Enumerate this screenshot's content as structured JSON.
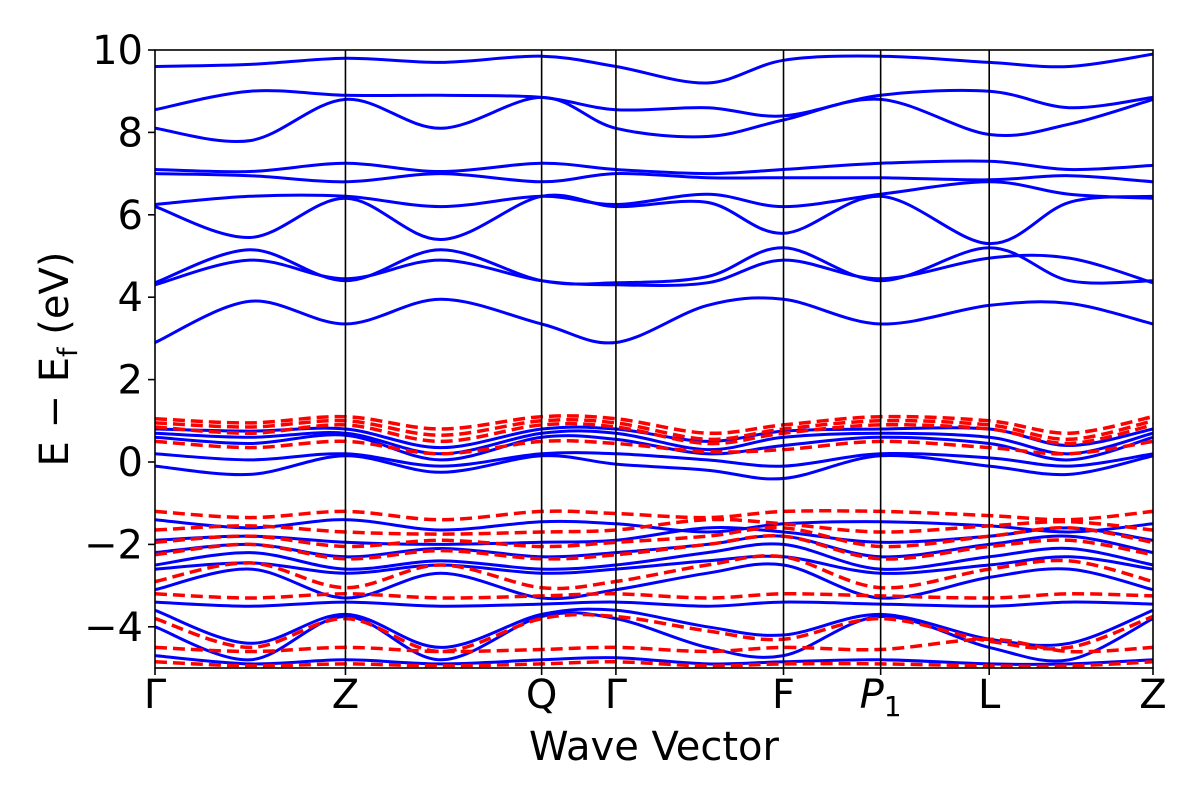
{
  "chart_data": {
    "type": "line",
    "xlabel": "Wave Vector",
    "ylabel_main": "E − E",
    "ylabel_sub": "f",
    "ylabel_unit": " (eV)",
    "ylim": [
      -5,
      10
    ],
    "yticks": [
      -4,
      -2,
      0,
      2,
      4,
      6,
      8,
      10
    ],
    "ytick_labels": [
      "−4",
      "−2",
      "0",
      "2",
      "4",
      "6",
      "8",
      "10"
    ],
    "kpoints": [
      {
        "label": "Γ",
        "sub": "",
        "x": 0.0
      },
      {
        "label": "Z",
        "sub": "",
        "x": 1.0
      },
      {
        "label": "Q",
        "sub": "",
        "x": 2.03
      },
      {
        "label": "Γ",
        "sub": "",
        "x": 2.42
      },
      {
        "label": "F",
        "sub": "",
        "x": 3.3
      },
      {
        "label": "P",
        "sub": "1",
        "x": 3.81
      },
      {
        "label": "L",
        "sub": "",
        "x": 4.38
      },
      {
        "label": "Z",
        "sub": "",
        "x": 5.24
      }
    ],
    "xlim": [
      0.0,
      5.24
    ],
    "grid": false,
    "colors": {
      "blue": "#0000ff",
      "red": "#ff0000",
      "axis": "#000000"
    },
    "series": [
      {
        "style": "solid-blue",
        "x": [
          0,
          0.5,
          1,
          1.5,
          2.03,
          2.42,
          2.9,
          3.3,
          3.81,
          4.38,
          4.8,
          5.24
        ],
        "y": [
          2.9,
          3.9,
          3.35,
          3.95,
          3.35,
          2.9,
          3.8,
          3.95,
          3.35,
          3.8,
          3.85,
          3.35
        ]
      },
      {
        "style": "solid-blue",
        "x": [
          0,
          0.5,
          1,
          1.5,
          2.03,
          2.42,
          2.9,
          3.3,
          3.81,
          4.38,
          4.8,
          5.24
        ],
        "y": [
          4.35,
          5.15,
          4.4,
          5.15,
          4.4,
          4.35,
          4.5,
          5.2,
          4.4,
          5.2,
          4.4,
          4.4
        ]
      },
      {
        "style": "solid-blue",
        "x": [
          0,
          0.5,
          1,
          1.5,
          2.03,
          2.42,
          2.9,
          3.3,
          3.81,
          4.38,
          4.8,
          5.24
        ],
        "y": [
          4.3,
          4.9,
          4.45,
          4.9,
          4.4,
          4.3,
          4.35,
          4.9,
          4.45,
          4.95,
          4.95,
          4.35
        ]
      },
      {
        "style": "solid-blue",
        "x": [
          0,
          0.5,
          1,
          1.5,
          2.03,
          2.42,
          2.9,
          3.3,
          3.81,
          4.38,
          4.8,
          5.24
        ],
        "y": [
          6.2,
          5.45,
          6.4,
          5.4,
          6.45,
          6.2,
          6.3,
          5.55,
          6.45,
          5.3,
          6.3,
          6.45
        ]
      },
      {
        "style": "solid-blue",
        "x": [
          0,
          0.5,
          1,
          1.5,
          2.03,
          2.42,
          2.9,
          3.3,
          3.81,
          4.38,
          4.8,
          5.24
        ],
        "y": [
          6.25,
          6.45,
          6.45,
          6.2,
          6.45,
          6.25,
          6.5,
          6.2,
          6.5,
          6.8,
          6.5,
          6.4
        ]
      },
      {
        "style": "solid-blue",
        "x": [
          0,
          0.5,
          1,
          1.5,
          2.03,
          2.42,
          2.9,
          3.3,
          3.81,
          4.38,
          4.8,
          5.24
        ],
        "y": [
          7.0,
          6.95,
          6.8,
          7.0,
          6.8,
          7.0,
          6.9,
          6.9,
          6.9,
          6.85,
          6.95,
          6.8
        ]
      },
      {
        "style": "solid-blue",
        "x": [
          0,
          0.5,
          1,
          1.5,
          2.03,
          2.42,
          2.9,
          3.3,
          3.81,
          4.38,
          4.8,
          5.24
        ],
        "y": [
          7.1,
          7.05,
          7.25,
          7.05,
          7.25,
          7.1,
          7.0,
          7.1,
          7.25,
          7.3,
          7.1,
          7.2
        ]
      },
      {
        "style": "solid-blue",
        "x": [
          0,
          0.5,
          1,
          1.5,
          2.03,
          2.42,
          2.9,
          3.3,
          3.81,
          4.38,
          4.8,
          5.24
        ],
        "y": [
          8.1,
          7.8,
          8.8,
          8.1,
          8.85,
          8.1,
          7.9,
          8.3,
          8.8,
          7.95,
          8.2,
          8.8
        ]
      },
      {
        "style": "solid-blue",
        "x": [
          0,
          0.5,
          1,
          1.5,
          2.03,
          2.42,
          2.9,
          3.3,
          3.81,
          4.38,
          4.8,
          5.24
        ],
        "y": [
          8.55,
          9.0,
          8.9,
          8.9,
          8.85,
          8.55,
          8.6,
          8.4,
          8.9,
          9.0,
          8.6,
          8.85
        ]
      },
      {
        "style": "solid-blue",
        "x": [
          0,
          0.5,
          1,
          1.5,
          2.03,
          2.42,
          2.9,
          3.3,
          3.81,
          4.38,
          4.8,
          5.24
        ],
        "y": [
          9.6,
          9.65,
          9.8,
          9.7,
          9.85,
          9.6,
          9.2,
          9.75,
          9.85,
          9.7,
          9.6,
          9.9
        ]
      },
      {
        "style": "solid-blue",
        "x": [
          0,
          0.5,
          1,
          1.5,
          2.03,
          2.42,
          2.9,
          3.3,
          3.81,
          4.38,
          4.8,
          5.24
        ],
        "y": [
          0.8,
          0.75,
          0.8,
          0.35,
          0.8,
          0.8,
          0.5,
          0.75,
          0.8,
          0.8,
          0.4,
          0.8
        ]
      },
      {
        "style": "solid-blue",
        "x": [
          0,
          0.5,
          1,
          1.5,
          2.03,
          2.42,
          2.9,
          3.3,
          3.81,
          4.38,
          4.8,
          5.24
        ],
        "y": [
          0.7,
          0.6,
          0.7,
          0.2,
          0.7,
          0.7,
          0.3,
          0.6,
          0.7,
          0.6,
          0.2,
          0.7
        ]
      },
      {
        "style": "solid-blue",
        "x": [
          0,
          0.5,
          1,
          1.5,
          2.03,
          2.42,
          2.9,
          3.3,
          3.81,
          4.38,
          4.8,
          5.24
        ],
        "y": [
          0.6,
          0.45,
          0.65,
          0.05,
          0.6,
          0.55,
          0.2,
          0.4,
          0.6,
          0.45,
          0.05,
          0.6
        ]
      },
      {
        "style": "solid-blue",
        "x": [
          0,
          0.5,
          1,
          1.5,
          2.03,
          2.42,
          2.9,
          3.3,
          3.81,
          4.38,
          4.8,
          5.24
        ],
        "y": [
          0.2,
          0.05,
          0.2,
          -0.1,
          0.2,
          0.2,
          0.05,
          -0.1,
          0.2,
          0.1,
          -0.1,
          0.2
        ]
      },
      {
        "style": "solid-blue",
        "x": [
          0,
          0.5,
          1,
          1.5,
          2.03,
          2.42,
          2.9,
          3.3,
          3.81,
          4.38,
          4.8,
          5.24
        ],
        "y": [
          -0.1,
          -0.3,
          0.15,
          -0.25,
          0.15,
          -0.05,
          -0.2,
          -0.4,
          0.15,
          -0.1,
          -0.3,
          0.15
        ]
      },
      {
        "style": "solid-blue",
        "x": [
          0,
          0.5,
          1,
          1.5,
          2.03,
          2.42,
          2.9,
          3.3,
          3.81,
          4.38,
          4.8,
          5.24
        ],
        "y": [
          -1.4,
          -1.6,
          -1.4,
          -1.65,
          -1.45,
          -1.5,
          -1.7,
          -1.5,
          -1.45,
          -1.55,
          -1.7,
          -1.5
        ]
      },
      {
        "style": "solid-blue",
        "x": [
          0,
          0.5,
          1,
          1.5,
          2.03,
          2.42,
          2.9,
          3.3,
          3.81,
          4.38,
          4.8,
          5.24
        ],
        "y": [
          -1.9,
          -1.8,
          -1.95,
          -2.0,
          -1.95,
          -1.9,
          -1.6,
          -1.7,
          -1.95,
          -1.8,
          -1.6,
          -1.9
        ]
      },
      {
        "style": "solid-blue",
        "x": [
          0,
          0.5,
          1,
          1.5,
          2.03,
          2.42,
          2.9,
          3.3,
          3.81,
          4.38,
          4.8,
          5.24
        ],
        "y": [
          -2.2,
          -2.0,
          -2.3,
          -2.1,
          -2.3,
          -2.2,
          -2.0,
          -1.8,
          -2.3,
          -2.0,
          -1.8,
          -2.2
        ]
      },
      {
        "style": "solid-blue",
        "x": [
          0,
          0.5,
          1,
          1.5,
          2.03,
          2.42,
          2.9,
          3.3,
          3.81,
          4.38,
          4.8,
          5.24
        ],
        "y": [
          -2.5,
          -2.2,
          -2.6,
          -2.4,
          -2.6,
          -2.5,
          -2.2,
          -2.0,
          -2.6,
          -2.3,
          -2.1,
          -2.5
        ]
      },
      {
        "style": "solid-blue",
        "x": [
          0,
          0.5,
          1,
          1.5,
          2.03,
          2.42,
          2.9,
          3.3,
          3.81,
          4.38,
          4.8,
          5.24
        ],
        "y": [
          -2.6,
          -2.45,
          -2.7,
          -2.5,
          -2.7,
          -2.6,
          -2.4,
          -2.3,
          -2.7,
          -2.5,
          -2.3,
          -2.6
        ]
      },
      {
        "style": "solid-blue",
        "x": [
          0,
          0.5,
          1,
          1.5,
          2.03,
          2.42,
          2.9,
          3.3,
          3.81,
          4.38,
          4.8,
          5.24
        ],
        "y": [
          -3.1,
          -2.6,
          -3.3,
          -2.7,
          -3.3,
          -3.1,
          -2.7,
          -2.5,
          -3.3,
          -2.8,
          -2.6,
          -3.1
        ]
      },
      {
        "style": "solid-blue",
        "x": [
          0,
          0.5,
          1,
          1.5,
          2.03,
          2.42,
          2.9,
          3.3,
          3.81,
          4.38,
          4.8,
          5.24
        ],
        "y": [
          -3.4,
          -3.5,
          -3.4,
          -3.5,
          -3.45,
          -3.4,
          -3.5,
          -3.4,
          -3.45,
          -3.5,
          -3.4,
          -3.45
        ]
      },
      {
        "style": "solid-blue",
        "x": [
          0,
          0.5,
          1,
          1.5,
          2.03,
          2.42,
          2.9,
          3.3,
          3.81,
          4.38,
          4.8,
          5.24
        ],
        "y": [
          -3.6,
          -4.4,
          -3.7,
          -4.5,
          -3.7,
          -3.6,
          -4.0,
          -4.2,
          -3.7,
          -4.3,
          -4.4,
          -3.6
        ]
      },
      {
        "style": "solid-blue",
        "x": [
          0,
          0.5,
          1,
          1.5,
          2.03,
          2.42,
          2.9,
          3.3,
          3.81,
          4.38,
          4.8,
          5.24
        ],
        "y": [
          -4.0,
          -4.8,
          -3.75,
          -4.8,
          -3.75,
          -3.8,
          -4.5,
          -4.7,
          -3.75,
          -4.5,
          -4.8,
          -3.8
        ]
      },
      {
        "style": "solid-blue",
        "x": [
          0,
          0.5,
          1,
          1.5,
          2.03,
          2.42,
          2.9,
          3.3,
          3.81,
          4.38,
          4.8,
          5.24
        ],
        "y": [
          -4.7,
          -4.9,
          -4.8,
          -4.9,
          -4.8,
          -4.75,
          -4.9,
          -4.85,
          -4.8,
          -4.9,
          -4.9,
          -4.8
        ]
      },
      {
        "style": "dashed-red",
        "x": [
          0,
          0.5,
          1,
          1.5,
          2.03,
          2.42,
          2.9,
          3.3,
          3.81,
          4.38,
          4.8,
          5.24
        ],
        "y": [
          1.05,
          0.95,
          1.1,
          0.8,
          1.1,
          1.05,
          0.7,
          0.9,
          1.1,
          1.0,
          0.7,
          1.1
        ]
      },
      {
        "style": "dashed-red",
        "x": [
          0,
          0.5,
          1,
          1.5,
          2.03,
          2.42,
          2.9,
          3.3,
          3.81,
          4.38,
          4.8,
          5.24
        ],
        "y": [
          0.95,
          0.85,
          1.0,
          0.65,
          1.0,
          0.95,
          0.55,
          0.8,
          1.0,
          0.9,
          0.55,
          1.0
        ]
      },
      {
        "style": "dashed-red",
        "x": [
          0,
          0.5,
          1,
          1.5,
          2.03,
          2.42,
          2.9,
          3.3,
          3.81,
          4.38,
          4.8,
          5.24
        ],
        "y": [
          0.85,
          0.7,
          0.9,
          0.5,
          0.9,
          0.85,
          0.45,
          0.7,
          0.9,
          0.8,
          0.45,
          0.9
        ]
      },
      {
        "style": "dashed-red",
        "x": [
          0,
          0.5,
          1,
          1.5,
          2.03,
          2.42,
          2.9,
          3.3,
          3.81,
          4.38,
          4.8,
          5.24
        ],
        "y": [
          0.5,
          0.35,
          0.5,
          0.2,
          0.5,
          0.45,
          0.25,
          0.3,
          0.5,
          0.35,
          0.2,
          0.5
        ]
      },
      {
        "style": "dashed-red",
        "x": [
          0,
          0.5,
          1,
          1.5,
          2.03,
          2.42,
          2.9,
          3.3,
          3.81,
          4.38,
          4.8,
          5.24
        ],
        "y": [
          -1.2,
          -1.35,
          -1.2,
          -1.4,
          -1.2,
          -1.25,
          -1.35,
          -1.2,
          -1.2,
          -1.3,
          -1.4,
          -1.2
        ]
      },
      {
        "style": "dashed-red",
        "x": [
          0,
          0.5,
          1,
          1.5,
          2.03,
          2.42,
          2.9,
          3.3,
          3.81,
          4.38,
          4.8,
          5.24
        ],
        "y": [
          -1.65,
          -1.55,
          -1.7,
          -1.75,
          -1.7,
          -1.65,
          -1.4,
          -1.5,
          -1.7,
          -1.55,
          -1.45,
          -1.65
        ]
      },
      {
        "style": "dashed-red",
        "x": [
          0,
          0.5,
          1,
          1.5,
          2.03,
          2.42,
          2.9,
          3.3,
          3.81,
          4.38,
          4.8,
          5.24
        ],
        "y": [
          -1.95,
          -1.8,
          -2.05,
          -1.9,
          -2.05,
          -1.95,
          -1.8,
          -1.6,
          -2.05,
          -1.8,
          -1.6,
          -1.95
        ]
      },
      {
        "style": "dashed-red",
        "x": [
          0,
          0.5,
          1,
          1.5,
          2.03,
          2.42,
          2.9,
          3.3,
          3.81,
          4.38,
          4.8,
          5.24
        ],
        "y": [
          -2.25,
          -2.0,
          -2.35,
          -2.15,
          -2.35,
          -2.25,
          -2.0,
          -1.8,
          -2.35,
          -2.05,
          -1.9,
          -2.25
        ]
      },
      {
        "style": "dashed-red",
        "x": [
          0,
          0.5,
          1,
          1.5,
          2.03,
          2.42,
          2.9,
          3.3,
          3.81,
          4.38,
          4.8,
          5.24
        ],
        "y": [
          -2.9,
          -2.45,
          -3.05,
          -2.5,
          -3.05,
          -2.9,
          -2.5,
          -2.3,
          -3.05,
          -2.6,
          -2.4,
          -2.9
        ]
      },
      {
        "style": "dashed-red",
        "x": [
          0,
          0.5,
          1,
          1.5,
          2.03,
          2.42,
          2.9,
          3.3,
          3.81,
          4.38,
          4.8,
          5.24
        ],
        "y": [
          -3.2,
          -3.3,
          -3.2,
          -3.3,
          -3.25,
          -3.2,
          -3.3,
          -3.2,
          -3.25,
          -3.3,
          -3.2,
          -3.25
        ]
      },
      {
        "style": "dashed-red",
        "x": [
          0,
          0.5,
          1,
          1.5,
          2.03,
          2.42,
          2.9,
          3.3,
          3.81,
          4.38,
          4.8,
          5.24
        ],
        "y": [
          -3.8,
          -4.5,
          -3.8,
          -4.6,
          -3.8,
          -3.75,
          -4.1,
          -4.3,
          -3.8,
          -4.35,
          -4.5,
          -3.75
        ]
      },
      {
        "style": "dashed-red",
        "x": [
          0,
          0.5,
          1,
          1.5,
          2.03,
          2.42,
          2.9,
          3.3,
          3.81,
          4.38,
          4.8,
          5.24
        ],
        "y": [
          -4.5,
          -4.6,
          -4.5,
          -4.6,
          -4.55,
          -4.5,
          -4.6,
          -4.5,
          -4.55,
          -4.3,
          -4.6,
          -4.5
        ]
      },
      {
        "style": "dashed-red",
        "x": [
          0,
          0.5,
          1,
          1.5,
          2.03,
          2.42,
          2.9,
          3.3,
          3.81,
          4.38,
          4.8,
          5.24
        ],
        "y": [
          -4.85,
          -4.95,
          -4.9,
          -4.95,
          -4.9,
          -4.85,
          -4.95,
          -4.9,
          -4.9,
          -4.95,
          -4.95,
          -4.85
        ]
      }
    ]
  }
}
